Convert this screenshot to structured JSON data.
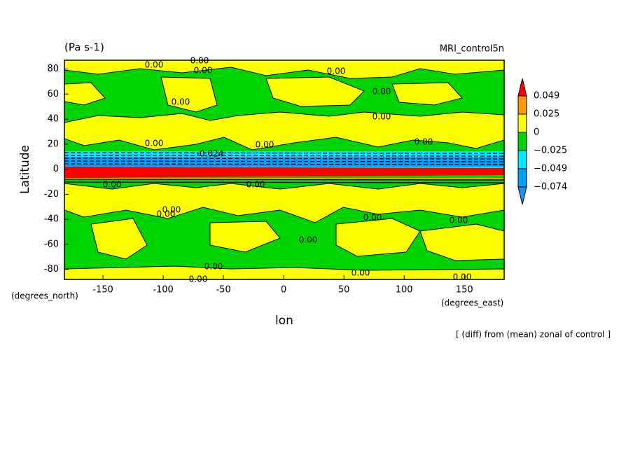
{
  "chart_data": {
    "type": "contour",
    "title": "(Pa s-1)",
    "subtitle": "MRI_control5n",
    "x_label": "lon",
    "y_label": "Latitude",
    "x_units": "(degrees_east)",
    "y_units": "(degrees_north)",
    "annotation": "[ (diff) from (mean) zonal of control ]",
    "xlim": [
      -182,
      183
    ],
    "ylim": [
      -88,
      87
    ],
    "xticks": [
      -150,
      -100,
      -50,
      0,
      50,
      100,
      150
    ],
    "yticks": [
      -80,
      -60,
      -40,
      -20,
      0,
      20,
      40,
      60,
      80
    ],
    "levels": [
      -0.074,
      -0.049,
      -0.025,
      0,
      0.025,
      0.049
    ],
    "level_labels": [
      "−0.074",
      "−0.049",
      "−0.025",
      "0",
      "0.025",
      "0.049"
    ],
    "colors": [
      "#1e90ff",
      "#00a0ff",
      "#00e8ff",
      "#00d400",
      "#ffff00",
      "#ff9a00",
      "#ff0000"
    ],
    "contour_labels": [
      "0.00",
      "0.00",
      "0.00",
      "0.00",
      "0.00",
      "0.00",
      "0.00",
      "0.00",
      "0.00",
      "0.00",
      "-0.024",
      "0.00",
      "0.00",
      "0.00",
      "0.00",
      "0.00",
      "0.00",
      "0.00",
      "0.00",
      "0.00",
      "0.00",
      "0.00"
    ]
  }
}
